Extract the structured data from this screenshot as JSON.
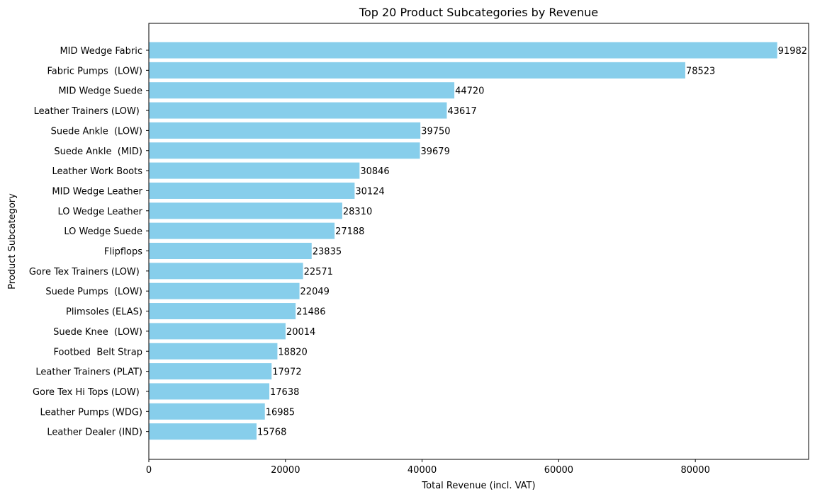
{
  "chart_data": {
    "type": "bar",
    "orientation": "horizontal",
    "title": "Top 20 Product Subcategories by Revenue",
    "xlabel": "Total Revenue (incl. VAT)",
    "ylabel": "Product Subcategory",
    "xlim": [
      0,
      96580
    ],
    "x_ticks": [
      0,
      20000,
      40000,
      60000,
      80000
    ],
    "x_tick_labels": [
      "0",
      "20000",
      "40000",
      "60000",
      "80000"
    ],
    "grid": false,
    "legend": "none",
    "bar_color": "#87CEEB",
    "categories": [
      "MID Wedge Fabric",
      "Fabric Pumps  (LOW)",
      "MID Wedge Suede",
      "Leather Trainers (LOW) ",
      "Suede Ankle  (LOW)",
      "Suede Ankle  (MID)",
      "Leather Work Boots",
      "MID Wedge Leather",
      "LO Wedge Leather",
      "LO Wedge Suede",
      "Flipflops",
      "Gore Tex Trainers (LOW) ",
      "Suede Pumps  (LOW)",
      "Plimsoles (ELAS)",
      "Suede Knee  (LOW)",
      "Footbed  Belt Strap",
      "Leather Trainers (PLAT)",
      "Gore Tex Hi Tops (LOW) ",
      "Leather Pumps (WDG)",
      "Leather Dealer (IND)"
    ],
    "values": [
      91982,
      78523,
      44720,
      43617,
      39750,
      39679,
      30846,
      30124,
      28310,
      27188,
      23835,
      22571,
      22049,
      21486,
      20014,
      18820,
      17972,
      17638,
      16985,
      15768
    ],
    "data_labels": [
      "91982",
      "78523",
      "44720",
      "43617",
      "39750",
      "39679",
      "30846",
      "30124",
      "28310",
      "27188",
      "23835",
      "22571",
      "22049",
      "21486",
      "20014",
      "18820",
      "17972",
      "17638",
      "16985",
      "15768"
    ]
  }
}
